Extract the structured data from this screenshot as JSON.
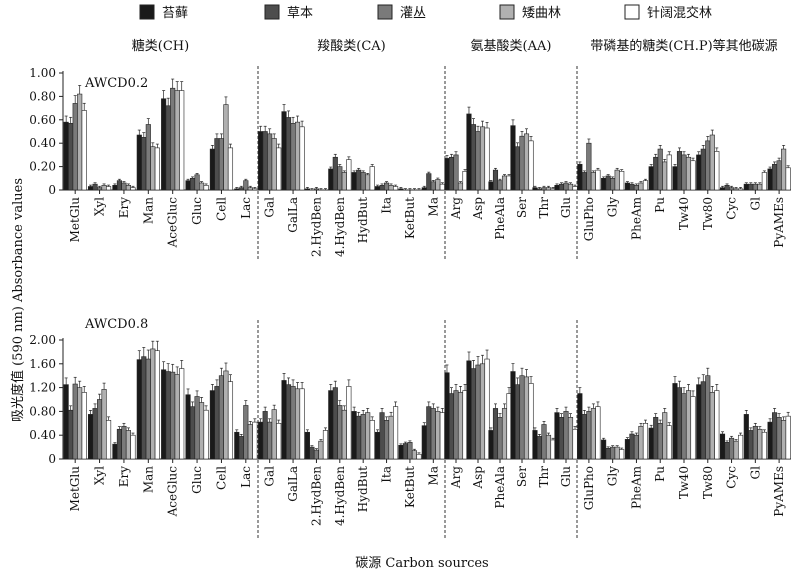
{
  "legend": [
    {
      "label": "苔藓",
      "color": "#1a1a1a"
    },
    {
      "label": "草本",
      "color": "#4d4d4d"
    },
    {
      "label": "灌丛",
      "color": "#7a7a7a"
    },
    {
      "label": "矮曲林",
      "color": "#b0b0b0"
    },
    {
      "label": "针阔混交林",
      "color": "#ffffff"
    }
  ],
  "groups": [
    "糖类(CH)",
    "羧酸类(CA)",
    "氨基酸类(AA)",
    "带磷基的糖类(CH.P)等其他碳源"
  ],
  "ylabel": "吸光度值 (590 nm) Absorbance values",
  "xlabel": "碳源 Carbon sources",
  "chart_data": [
    {
      "type": "bar",
      "title": "AWCD0.2",
      "ylim": [
        0,
        1.0
      ],
      "yticks": [
        "0",
        "0.20",
        "0.40",
        "0.60",
        "0.80",
        "1.00"
      ],
      "ytick_values": [
        0,
        0.2,
        0.4,
        0.6,
        0.8,
        1.0
      ],
      "categories": [
        "MetGlu",
        "Xyl",
        "Ery",
        "Man",
        "AceGluc",
        "Gluc",
        "Cell",
        "Lac",
        "Gal",
        "GalLa",
        "2.HydBen",
        "4.HydBen",
        "HydBut",
        "Ita",
        "KetBut",
        "Ma",
        "Arg",
        "Asp",
        "PheAla",
        "Ser",
        "Thr",
        "Glu",
        "GluPho",
        "Gly",
        "PheAm",
        "Pu",
        "Tw40",
        "Tw80",
        "Cyc",
        "Gl",
        "PyAMEs"
      ],
      "series": [
        {
          "name": "苔藓",
          "values": [
            0.58,
            0.03,
            0.04,
            0.47,
            0.78,
            0.08,
            0.35,
            0.01,
            0.5,
            0.67,
            0.01,
            0.18,
            0.15,
            0.03,
            0.01,
            0.02,
            0.27,
            0.65,
            0.07,
            0.55,
            0.02,
            0.04,
            0.22,
            0.1,
            0.06,
            0.2,
            0.2,
            0.3,
            0.02,
            0.05,
            0.18
          ]
        },
        {
          "name": "草本",
          "values": [
            0.57,
            0.05,
            0.08,
            0.45,
            0.72,
            0.1,
            0.44,
            0.02,
            0.5,
            0.62,
            0.0,
            0.28,
            0.17,
            0.04,
            0.0,
            0.14,
            0.28,
            0.56,
            0.17,
            0.37,
            0.01,
            0.05,
            0.15,
            0.12,
            0.05,
            0.28,
            0.33,
            0.35,
            0.04,
            0.05,
            0.22
          ]
        },
        {
          "name": "灌丛",
          "values": [
            0.74,
            0.02,
            0.06,
            0.56,
            0.87,
            0.13,
            0.44,
            0.08,
            0.48,
            0.57,
            0.01,
            0.2,
            0.15,
            0.06,
            0.0,
            0.07,
            0.3,
            0.5,
            0.08,
            0.46,
            0.02,
            0.06,
            0.4,
            0.1,
            0.04,
            0.35,
            0.3,
            0.42,
            0.02,
            0.05,
            0.25
          ]
        },
        {
          "name": "矮曲林",
          "values": [
            0.82,
            0.04,
            0.04,
            0.37,
            0.85,
            0.06,
            0.73,
            0.02,
            0.44,
            0.58,
            0.0,
            0.15,
            0.13,
            0.04,
            0.0,
            0.09,
            0.06,
            0.54,
            0.12,
            0.48,
            0.02,
            0.05,
            0.15,
            0.17,
            0.06,
            0.24,
            0.28,
            0.47,
            0.01,
            0.05,
            0.35
          ]
        },
        {
          "name": "针阔混交林",
          "values": [
            0.68,
            0.03,
            0.02,
            0.36,
            0.85,
            0.04,
            0.36,
            0.01,
            0.36,
            0.54,
            0.0,
            0.26,
            0.2,
            0.03,
            0.0,
            0.05,
            0.16,
            0.53,
            0.12,
            0.42,
            0.01,
            0.03,
            0.17,
            0.16,
            0.08,
            0.3,
            0.25,
            0.33,
            0.01,
            0.15,
            0.19
          ]
        }
      ]
    },
    {
      "type": "bar",
      "title": "AWCD0.8",
      "ylim": [
        0,
        2.0
      ],
      "yticks": [
        "0",
        "0.40",
        "0.80",
        "1.20",
        "1.60",
        "2.00"
      ],
      "ytick_values": [
        0,
        0.4,
        0.8,
        1.2,
        1.6,
        2.0
      ],
      "categories": [
        "MetGlu",
        "Xyl",
        "Ery",
        "Man",
        "AceGluc",
        "Gluc",
        "Cell",
        "Lac",
        "Gal",
        "GalLa",
        "2.HydBen",
        "4.HydBen",
        "HydBut",
        "Ita",
        "KetBut",
        "Ma",
        "Arg",
        "Asp",
        "PheAla",
        "Ser",
        "Thr",
        "Glu",
        "GluPho",
        "Gly",
        "PheAm",
        "Pu",
        "Tw40",
        "Tw80",
        "Cyc",
        "Gl",
        "PyAMEs"
      ],
      "series": [
        {
          "name": "苔藓",
          "values": [
            1.25,
            0.75,
            0.25,
            1.67,
            1.5,
            1.08,
            1.15,
            0.45,
            0.62,
            1.32,
            0.45,
            1.15,
            0.8,
            0.45,
            0.23,
            0.56,
            1.45,
            1.65,
            0.48,
            1.47,
            0.48,
            0.78,
            1.1,
            0.32,
            0.33,
            0.52,
            1.27,
            1.25,
            0.42,
            0.75,
            0.62
          ]
        },
        {
          "name": "草本",
          "values": [
            0.82,
            0.85,
            0.5,
            1.72,
            1.47,
            0.88,
            1.22,
            0.38,
            0.8,
            1.25,
            0.2,
            1.2,
            0.72,
            0.78,
            0.26,
            0.88,
            1.1,
            1.52,
            0.85,
            1.25,
            0.38,
            0.7,
            0.75,
            0.18,
            0.42,
            0.7,
            1.2,
            1.3,
            0.28,
            0.48,
            0.78
          ]
        },
        {
          "name": "灌丛",
          "values": [
            1.26,
            1.0,
            0.55,
            1.68,
            1.46,
            1.05,
            1.4,
            0.9,
            0.62,
            1.22,
            0.15,
            0.9,
            0.75,
            0.65,
            0.28,
            0.85,
            1.15,
            1.58,
            0.7,
            1.4,
            0.58,
            0.8,
            0.8,
            0.2,
            0.4,
            0.6,
            1.1,
            1.4,
            0.35,
            0.55,
            0.7
          ]
        },
        {
          "name": "矮曲林",
          "values": [
            1.2,
            1.17,
            0.48,
            1.85,
            1.42,
            0.95,
            1.48,
            0.58,
            0.83,
            1.18,
            0.3,
            0.82,
            0.78,
            0.72,
            0.14,
            0.8,
            1.12,
            1.6,
            0.85,
            1.38,
            0.4,
            0.7,
            0.85,
            0.2,
            0.55,
            0.78,
            1.15,
            1.12,
            0.3,
            0.5,
            0.65
          ]
        },
        {
          "name": "针阔混交林",
          "values": [
            1.12,
            0.65,
            0.4,
            1.82,
            1.52,
            0.82,
            1.3,
            0.62,
            0.6,
            1.18,
            0.48,
            1.22,
            0.65,
            0.88,
            0.08,
            0.78,
            1.15,
            1.68,
            1.1,
            1.27,
            0.32,
            0.5,
            0.88,
            0.16,
            0.6,
            0.56,
            1.05,
            1.15,
            0.4,
            0.45,
            0.72
          ]
        }
      ]
    }
  ]
}
